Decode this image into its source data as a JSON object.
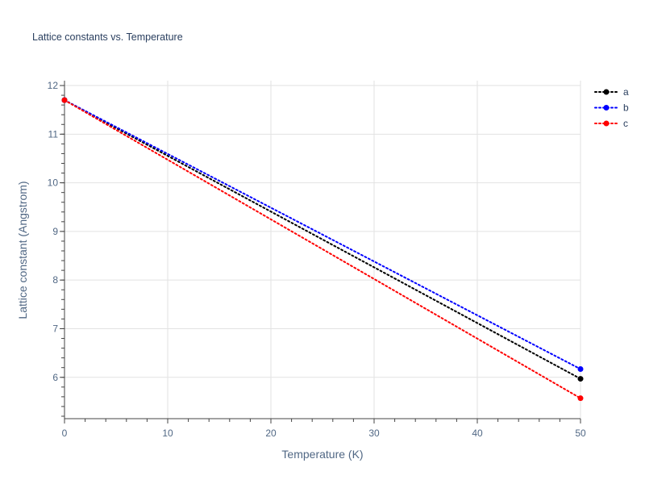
{
  "chart_data": {
    "type": "line",
    "title": "Lattice constants vs. Temperature",
    "xlabel": "Temperature (K)",
    "ylabel": "Lattice constant (Angstrom)",
    "xlim": [
      0,
      50
    ],
    "ylim": [
      5.15,
      12.1
    ],
    "xticks": [
      0,
      10,
      20,
      30,
      40,
      50
    ],
    "yticks": [
      6,
      7,
      8,
      9,
      10,
      11,
      12
    ],
    "grid": true,
    "legend_position": "top-right",
    "line_style": "dotted",
    "markers": "endpoints",
    "series": [
      {
        "name": "a",
        "color": "#000000",
        "x": [
          0,
          50
        ],
        "y": [
          11.7,
          5.97
        ]
      },
      {
        "name": "b",
        "color": "#0000ff",
        "x": [
          0,
          50
        ],
        "y": [
          11.7,
          6.17
        ]
      },
      {
        "name": "c",
        "color": "#ff0000",
        "x": [
          0,
          50
        ],
        "y": [
          11.7,
          5.57
        ]
      }
    ]
  }
}
